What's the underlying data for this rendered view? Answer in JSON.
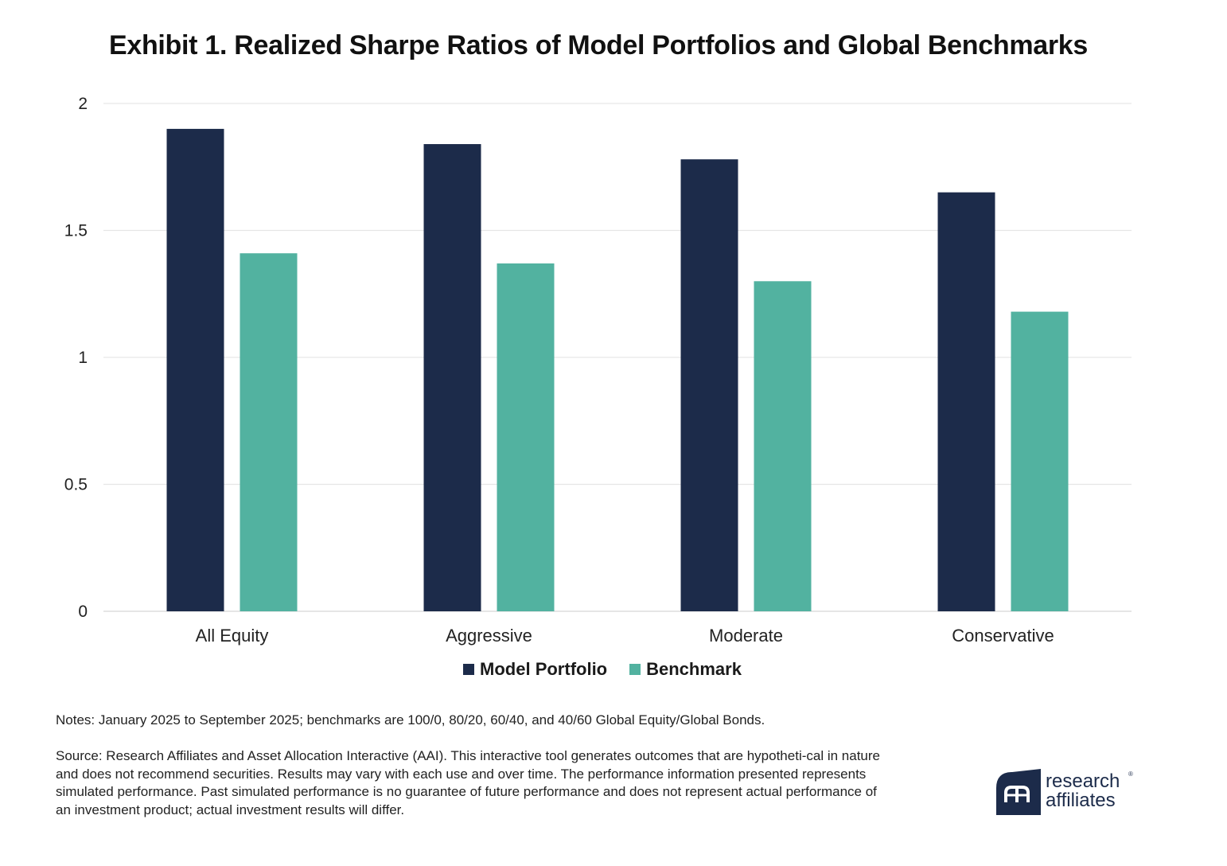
{
  "title": "Exhibit 1. Realized Sharpe Ratios of Model Portfolios and Global Benchmarks",
  "colors": {
    "model": "#1c2b4a",
    "benchmark": "#52b2a0",
    "grid": "#e6e6e6"
  },
  "chart_data": {
    "type": "bar",
    "title": "Exhibit 1. Realized Sharpe Ratios of Model Portfolios and Global Benchmarks",
    "xlabel": "",
    "ylabel": "",
    "categories": [
      "All Equity",
      "Aggressive",
      "Moderate",
      "Conservative"
    ],
    "series": [
      {
        "name": "Model Portfolio",
        "values": [
          1.9,
          1.84,
          1.78,
          1.65
        ],
        "color": "#1c2b4a"
      },
      {
        "name": "Benchmark",
        "values": [
          1.41,
          1.37,
          1.3,
          1.18
        ],
        "color": "#52b2a0"
      }
    ],
    "ylim": [
      0,
      2
    ],
    "yticks": [
      0,
      0.5,
      1,
      1.5,
      2
    ],
    "ytick_labels": [
      "0",
      "0.5",
      "1",
      "1.5",
      "2"
    ],
    "grid": true,
    "legend": "bottom-center"
  },
  "legend": {
    "model": "Model Portfolio",
    "benchmark": "Benchmark"
  },
  "notes": "Notes: January 2025 to September 2025; benchmarks are 100/0, 80/20, 60/40, and 40/60 Global Equity/Global Bonds.",
  "source": "Source: Research Affiliates and Asset Allocation Interactive (AAI). This interactive tool generates outcomes that are hypotheti-cal in nature and does not recommend securities. Results may vary with each use and over time. The performance information presented represents simulated performance. Past simulated performance is no guarantee of future performance and does not represent actual performance of an investment product; actual investment results will differ.",
  "logo": {
    "line1": "research",
    "line2": "affiliates"
  }
}
